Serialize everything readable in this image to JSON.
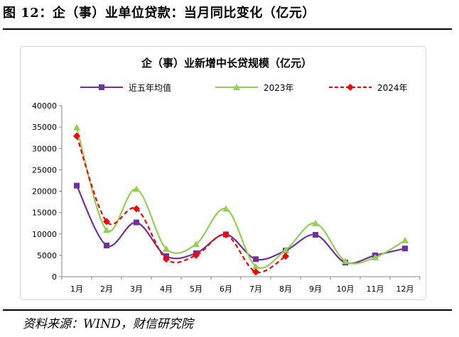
{
  "figure": {
    "title": "图 12：企（事）业单位贷款：当月同比变化（亿元）",
    "source": "资料来源：WIND，财信研究院"
  },
  "chart_data": {
    "type": "line",
    "title": "企（事）业新增中长贷规模（亿元）",
    "xlabel": "",
    "ylabel": "",
    "categories": [
      "1月",
      "2月",
      "3月",
      "4月",
      "5月",
      "6月",
      "7月",
      "8月",
      "9月",
      "10月",
      "11月",
      "12月"
    ],
    "ylim": [
      0,
      40000
    ],
    "yticks": [
      0,
      5000,
      10000,
      15000,
      20000,
      25000,
      30000,
      35000,
      40000
    ],
    "legend_position": "top",
    "grid": false,
    "series": [
      {
        "name": "近五年均值",
        "color": "#7030a0",
        "marker": "square",
        "dashed": false,
        "values": [
          21300,
          7300,
          12700,
          4800,
          5500,
          9900,
          4100,
          6100,
          9800,
          3300,
          5000,
          6600
        ]
      },
      {
        "name": "2023年",
        "color": "#92d050",
        "marker": "triangle",
        "dashed": false,
        "values": [
          34900,
          10900,
          20500,
          6500,
          7600,
          15900,
          2400,
          6200,
          12500,
          3600,
          4500,
          8500
        ]
      },
      {
        "name": "2024年",
        "color": "#ff0000",
        "marker": "diamond",
        "dashed": true,
        "values": [
          32900,
          12900,
          15900,
          4100,
          5000,
          9800,
          1100,
          4800,
          null,
          null,
          null,
          null
        ]
      }
    ]
  }
}
